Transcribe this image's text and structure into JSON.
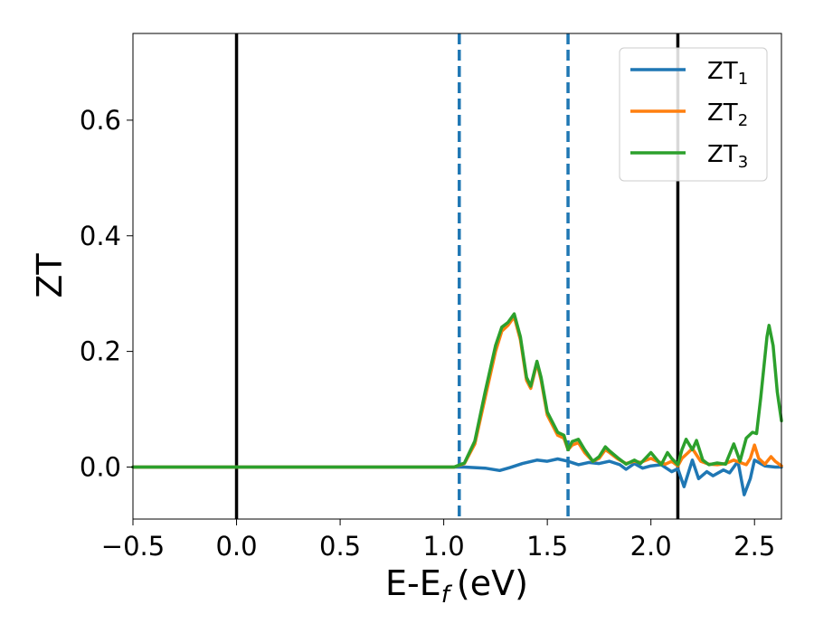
{
  "chart_data": {
    "type": "line",
    "xlabel": "E-E",
    "xlabel_sub": "f",
    "xlabel_unit": "(eV)",
    "ylabel": "ZT",
    "xlim": [
      -0.5,
      2.63
    ],
    "ylim": [
      -0.09,
      0.75
    ],
    "xticks": [
      -0.5,
      0.0,
      0.5,
      1.0,
      1.5,
      2.0,
      2.5
    ],
    "xtick_labels": [
      "−0.5",
      "0.0",
      "0.5",
      "1.0",
      "1.5",
      "2.0",
      "2.5"
    ],
    "yticks": [
      0.0,
      0.2,
      0.4,
      0.6
    ],
    "ytick_labels": [
      "0.0",
      "0.2",
      "0.4",
      "0.6"
    ],
    "grid": false,
    "legend_position": "top-right",
    "vertical_lines": [
      {
        "x": 0.0,
        "color": "#000000",
        "style": "solid"
      },
      {
        "x": 1.075,
        "color": "#1f77b4",
        "style": "dashed"
      },
      {
        "x": 1.6,
        "color": "#1f77b4",
        "style": "dashed"
      },
      {
        "x": 2.13,
        "color": "#000000",
        "style": "solid"
      }
    ],
    "series": [
      {
        "name": "ZT",
        "sub": "1",
        "color": "#1f77b4",
        "points": [
          [
            -0.5,
            0
          ],
          [
            1.0,
            0
          ],
          [
            1.1,
            0.0
          ],
          [
            1.2,
            -0.002
          ],
          [
            1.27,
            -0.006
          ],
          [
            1.32,
            -0.001
          ],
          [
            1.38,
            0.006
          ],
          [
            1.45,
            0.012
          ],
          [
            1.5,
            0.01
          ],
          [
            1.55,
            0.014
          ],
          [
            1.6,
            0.01
          ],
          [
            1.65,
            0.004
          ],
          [
            1.7,
            0.008
          ],
          [
            1.75,
            0.006
          ],
          [
            1.8,
            0.01
          ],
          [
            1.85,
            0.004
          ],
          [
            1.88,
            -0.004
          ],
          [
            1.92,
            0.006
          ],
          [
            1.96,
            -0.002
          ],
          [
            2.0,
            0.002
          ],
          [
            2.05,
            0.004
          ],
          [
            2.1,
            -0.008
          ],
          [
            2.13,
            -0.003
          ],
          [
            2.16,
            -0.034
          ],
          [
            2.2,
            0.012
          ],
          [
            2.23,
            -0.02
          ],
          [
            2.27,
            -0.008
          ],
          [
            2.3,
            -0.015
          ],
          [
            2.35,
            -0.005
          ],
          [
            2.38,
            -0.01
          ],
          [
            2.42,
            0.01
          ],
          [
            2.45,
            -0.048
          ],
          [
            2.48,
            -0.02
          ],
          [
            2.5,
            0.012
          ],
          [
            2.55,
            0.002
          ],
          [
            2.6,
            0.0
          ],
          [
            2.63,
            0.0
          ]
        ]
      },
      {
        "name": "ZT",
        "sub": "2",
        "color": "#ff7f0e",
        "points": [
          [
            -0.5,
            0
          ],
          [
            1.0,
            0
          ],
          [
            1.05,
            0.0
          ],
          [
            1.1,
            0.006
          ],
          [
            1.15,
            0.04
          ],
          [
            1.2,
            0.12
          ],
          [
            1.25,
            0.2
          ],
          [
            1.28,
            0.235
          ],
          [
            1.31,
            0.245
          ],
          [
            1.34,
            0.26
          ],
          [
            1.37,
            0.22
          ],
          [
            1.4,
            0.15
          ],
          [
            1.42,
            0.136
          ],
          [
            1.45,
            0.18
          ],
          [
            1.47,
            0.15
          ],
          [
            1.5,
            0.09
          ],
          [
            1.55,
            0.055
          ],
          [
            1.58,
            0.05
          ],
          [
            1.6,
            0.03
          ],
          [
            1.62,
            0.038
          ],
          [
            1.65,
            0.042
          ],
          [
            1.68,
            0.025
          ],
          [
            1.72,
            0.01
          ],
          [
            1.75,
            0.015
          ],
          [
            1.78,
            0.03
          ],
          [
            1.8,
            0.025
          ],
          [
            1.84,
            0.014
          ],
          [
            1.88,
            0.006
          ],
          [
            1.92,
            0.01
          ],
          [
            1.95,
            0.008
          ],
          [
            2.0,
            0.015
          ],
          [
            2.03,
            0.01
          ],
          [
            2.07,
            0.005
          ],
          [
            2.1,
            0.01
          ],
          [
            2.13,
            0.002
          ],
          [
            2.15,
            0.015
          ],
          [
            2.18,
            0.025
          ],
          [
            2.2,
            0.032
          ],
          [
            2.24,
            0.01
          ],
          [
            2.28,
            0.005
          ],
          [
            2.32,
            0.004
          ],
          [
            2.36,
            0.006
          ],
          [
            2.4,
            0.012
          ],
          [
            2.43,
            0.008
          ],
          [
            2.46,
            0.004
          ],
          [
            2.48,
            0.015
          ],
          [
            2.5,
            0.038
          ],
          [
            2.52,
            0.015
          ],
          [
            2.55,
            0.005
          ],
          [
            2.58,
            0.018
          ],
          [
            2.6,
            0.01
          ],
          [
            2.63,
            0.002
          ]
        ]
      },
      {
        "name": "ZT",
        "sub": "3",
        "color": "#2ca02c",
        "points": [
          [
            -0.5,
            0
          ],
          [
            1.0,
            0
          ],
          [
            1.05,
            0.0
          ],
          [
            1.1,
            0.007
          ],
          [
            1.15,
            0.045
          ],
          [
            1.2,
            0.13
          ],
          [
            1.25,
            0.21
          ],
          [
            1.28,
            0.242
          ],
          [
            1.31,
            0.25
          ],
          [
            1.34,
            0.265
          ],
          [
            1.37,
            0.225
          ],
          [
            1.4,
            0.155
          ],
          [
            1.42,
            0.14
          ],
          [
            1.45,
            0.183
          ],
          [
            1.47,
            0.155
          ],
          [
            1.5,
            0.095
          ],
          [
            1.55,
            0.06
          ],
          [
            1.58,
            0.055
          ],
          [
            1.6,
            0.03
          ],
          [
            1.62,
            0.044
          ],
          [
            1.65,
            0.048
          ],
          [
            1.68,
            0.03
          ],
          [
            1.72,
            0.01
          ],
          [
            1.75,
            0.018
          ],
          [
            1.78,
            0.035
          ],
          [
            1.8,
            0.028
          ],
          [
            1.84,
            0.016
          ],
          [
            1.88,
            0.005
          ],
          [
            1.92,
            0.012
          ],
          [
            1.95,
            0.006
          ],
          [
            2.0,
            0.025
          ],
          [
            2.03,
            0.012
          ],
          [
            2.05,
            0.004
          ],
          [
            2.08,
            0.025
          ],
          [
            2.1,
            0.015
          ],
          [
            2.13,
            0.004
          ],
          [
            2.15,
            0.03
          ],
          [
            2.17,
            0.048
          ],
          [
            2.2,
            0.03
          ],
          [
            2.22,
            0.046
          ],
          [
            2.25,
            0.012
          ],
          [
            2.28,
            0.004
          ],
          [
            2.32,
            0.007
          ],
          [
            2.36,
            0.005
          ],
          [
            2.4,
            0.04
          ],
          [
            2.43,
            0.01
          ],
          [
            2.46,
            0.05
          ],
          [
            2.49,
            0.06
          ],
          [
            2.51,
            0.058
          ],
          [
            2.53,
            0.12
          ],
          [
            2.56,
            0.225
          ],
          [
            2.57,
            0.245
          ],
          [
            2.59,
            0.21
          ],
          [
            2.61,
            0.13
          ],
          [
            2.63,
            0.08
          ]
        ]
      }
    ]
  }
}
